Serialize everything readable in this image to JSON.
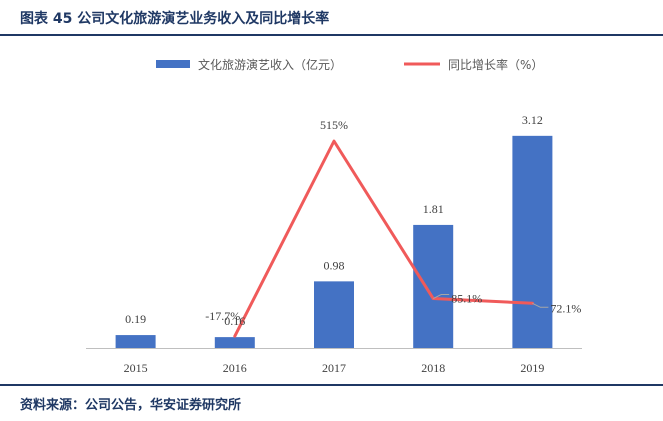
{
  "figure": {
    "title": "图表 45 公司文化旅游演艺业务收入及同比增长率",
    "source": "资料来源：公司公告，华安证券研究所"
  },
  "chart_data": {
    "type": "bar",
    "categories": [
      "2015",
      "2016",
      "2017",
      "2018",
      "2019"
    ],
    "series": [
      {
        "name": "文化旅游演艺收入（亿元）",
        "kind": "bar",
        "axis": "left",
        "values": [
          0.19,
          0.16,
          0.98,
          1.81,
          3.12
        ],
        "labels": [
          "0.19",
          "0.16",
          "0.98",
          "1.81",
          "3.12"
        ],
        "color": "#4472c4"
      },
      {
        "name": "同比增长率（%）",
        "kind": "line",
        "axis": "right",
        "values": [
          null,
          -17.7,
          515,
          85.1,
          72.1
        ],
        "labels": [
          "",
          "-17.7%",
          "515%",
          "85.1%",
          "72.1%"
        ],
        "color": "#f05a5a"
      }
    ],
    "legend": "top-center",
    "grid": false,
    "ylim_left": [
      0,
      3.5
    ],
    "ylim_right": [
      -50,
      600
    ]
  }
}
